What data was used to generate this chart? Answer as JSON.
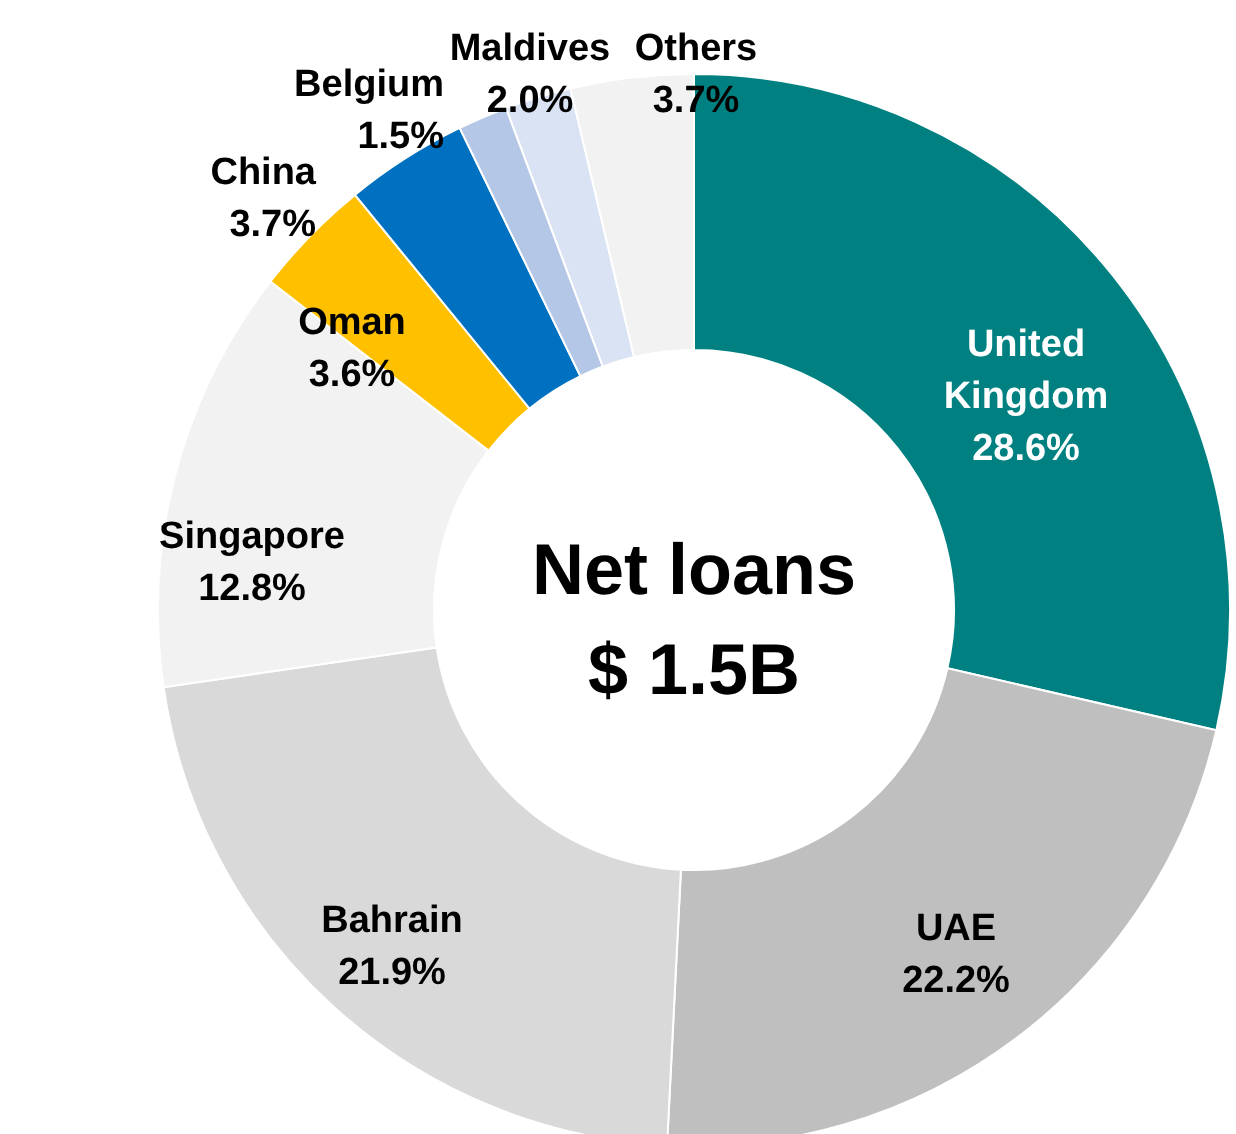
{
  "chart_data": {
    "type": "donut",
    "title": "Net loans",
    "subtitle": "$ 1.5B",
    "categories": [
      "United Kingdom",
      "UAE",
      "Bahrain",
      "Singapore",
      "Oman",
      "China",
      "Belgium",
      "Maldives",
      "Others"
    ],
    "values": [
      28.6,
      22.2,
      21.9,
      12.8,
      3.6,
      3.7,
      1.5,
      2.0,
      3.7
    ],
    "colors": [
      "#008080",
      "#bfbfbf",
      "#d9d9d9",
      "#f2f2f2",
      "#ffc000",
      "#0070c0",
      "#b4c7e7",
      "#dae3f3",
      "#f2f2f2"
    ],
    "value_labels": [
      "28.6%",
      "22.2%",
      "21.9%",
      "12.8%",
      "3.6%",
      "3.7%",
      "1.5%",
      "2.0%",
      "3.7%"
    ]
  }
}
